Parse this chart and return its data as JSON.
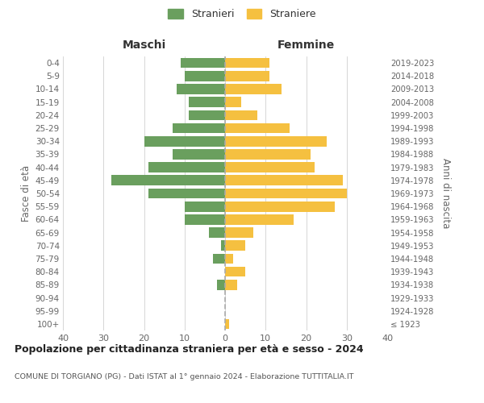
{
  "age_groups": [
    "100+",
    "95-99",
    "90-94",
    "85-89",
    "80-84",
    "75-79",
    "70-74",
    "65-69",
    "60-64",
    "55-59",
    "50-54",
    "45-49",
    "40-44",
    "35-39",
    "30-34",
    "25-29",
    "20-24",
    "15-19",
    "10-14",
    "5-9",
    "0-4"
  ],
  "birth_years": [
    "≤ 1923",
    "1924-1928",
    "1929-1933",
    "1934-1938",
    "1939-1943",
    "1944-1948",
    "1949-1953",
    "1954-1958",
    "1959-1963",
    "1964-1968",
    "1969-1973",
    "1974-1978",
    "1979-1983",
    "1984-1988",
    "1989-1993",
    "1994-1998",
    "1999-2003",
    "2004-2008",
    "2009-2013",
    "2014-2018",
    "2019-2023"
  ],
  "males": [
    0,
    0,
    0,
    2,
    0,
    3,
    1,
    4,
    10,
    10,
    19,
    28,
    19,
    13,
    20,
    13,
    9,
    9,
    12,
    10,
    11
  ],
  "females": [
    1,
    0,
    0,
    3,
    5,
    2,
    5,
    7,
    17,
    27,
    30,
    29,
    22,
    21,
    25,
    16,
    8,
    4,
    14,
    11,
    11
  ],
  "male_color": "#6a9f5e",
  "female_color": "#f5c040",
  "dashed_line_color": "#aaaaaa",
  "grid_color": "#d0d0d0",
  "background_color": "#ffffff",
  "title": "Popolazione per cittadinanza straniera per età e sesso - 2024",
  "subtitle": "COMUNE DI TORGIANO (PG) - Dati ISTAT al 1° gennaio 2024 - Elaborazione TUTTITALIA.IT",
  "xlabel_left": "Maschi",
  "xlabel_right": "Femmine",
  "ylabel_left": "Fasce di età",
  "ylabel_right": "Anni di nascita",
  "legend_stranieri": "Stranieri",
  "legend_straniere": "Straniere",
  "xlim": 40
}
